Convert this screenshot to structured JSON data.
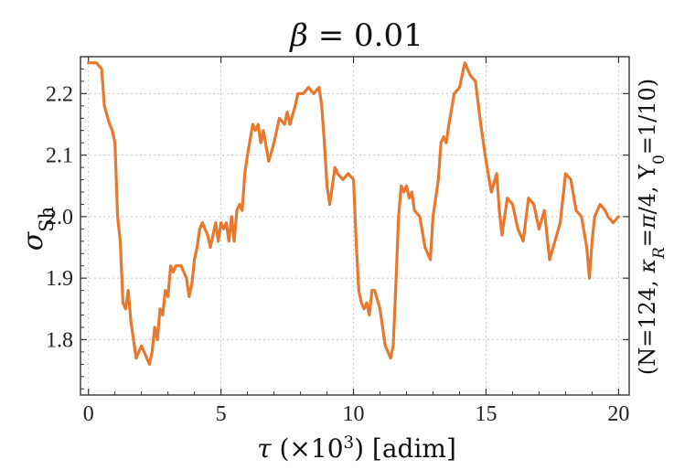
{
  "chart_data": {
    "type": "line",
    "title": "β = 0.01",
    "xlabel": "τ (×10³) [adim]",
    "ylabel": "σSh",
    "right_label": "(N=124, κR=π/4, Y0=1/10)",
    "xlim": [
      -0.3,
      20.4
    ],
    "ylim": [
      1.71,
      2.26
    ],
    "x_ticks": [
      0,
      5,
      10,
      15,
      20
    ],
    "y_ticks": [
      1.8,
      1.9,
      2.0,
      2.1,
      2.2
    ],
    "x_tick_labels": [
      "0",
      "5",
      "10",
      "15",
      "20"
    ],
    "y_tick_labels": [
      "1.8",
      "1.9",
      "2.0",
      "2.1",
      "2.2"
    ],
    "grid": true,
    "line_color": "#e8782e",
    "series": [
      {
        "x": [
          0.0,
          0.3,
          0.5,
          0.6,
          0.8,
          0.9,
          1.0,
          1.1,
          1.2,
          1.3,
          1.4,
          1.5,
          1.6,
          1.7,
          1.8,
          1.9,
          2.0,
          2.1,
          2.2,
          2.3,
          2.4,
          2.5,
          2.6,
          2.7,
          2.8,
          2.9,
          3.0,
          3.1,
          3.2,
          3.3,
          3.4,
          3.5,
          3.6,
          3.7,
          3.8,
          3.9,
          4.0,
          4.1,
          4.2,
          4.3,
          4.5,
          4.6,
          4.7,
          4.8,
          4.9,
          5.0,
          5.1,
          5.2,
          5.3,
          5.4,
          5.5,
          5.6,
          5.7,
          5.8,
          5.9,
          6.0,
          6.2,
          6.3,
          6.4,
          6.5,
          6.6,
          6.8,
          7.0,
          7.2,
          7.4,
          7.5,
          7.6,
          7.8,
          7.9,
          8.1,
          8.3,
          8.5,
          8.7,
          8.8,
          8.9,
          9.0,
          9.1,
          9.2,
          9.3,
          9.4,
          9.6,
          9.8,
          10.0,
          10.1,
          10.2,
          10.3,
          10.4,
          10.5,
          10.6,
          10.7,
          10.8,
          11.0,
          11.2,
          11.3,
          11.4,
          11.5,
          11.6,
          11.7,
          11.8,
          11.9,
          12.0,
          12.1,
          12.2,
          12.3,
          12.5,
          12.7,
          12.9,
          13.0,
          13.1,
          13.2,
          13.3,
          13.4,
          13.5,
          13.6,
          13.8,
          14.0,
          14.2,
          14.4,
          14.6,
          14.8,
          15.0,
          15.2,
          15.4,
          15.5,
          15.6,
          15.7,
          15.8,
          16.0,
          16.2,
          16.4,
          16.6,
          16.8,
          17.0,
          17.2,
          17.4,
          17.6,
          17.8,
          18.0,
          18.2,
          18.4,
          18.6,
          18.8,
          18.9,
          19.0,
          19.1,
          19.3,
          19.5,
          19.6,
          19.8,
          20.0
        ],
        "y": [
          2.25,
          2.25,
          2.24,
          2.18,
          2.15,
          2.14,
          2.12,
          2.0,
          1.96,
          1.86,
          1.85,
          1.88,
          1.83,
          1.8,
          1.77,
          1.78,
          1.79,
          1.78,
          1.77,
          1.76,
          1.78,
          1.82,
          1.8,
          1.85,
          1.84,
          1.88,
          1.87,
          1.92,
          1.91,
          1.92,
          1.92,
          1.92,
          1.91,
          1.9,
          1.87,
          1.89,
          1.93,
          1.95,
          1.98,
          1.99,
          1.97,
          1.95,
          1.97,
          1.99,
          1.96,
          1.99,
          1.98,
          1.99,
          1.96,
          2.0,
          1.96,
          2.01,
          2.02,
          2.01,
          2.07,
          2.1,
          2.15,
          2.14,
          2.15,
          2.12,
          2.14,
          2.09,
          2.12,
          2.16,
          2.15,
          2.17,
          2.15,
          2.18,
          2.2,
          2.2,
          2.21,
          2.2,
          2.21,
          2.18,
          2.12,
          2.05,
          2.02,
          2.05,
          2.08,
          2.07,
          2.06,
          2.07,
          2.06,
          1.96,
          1.88,
          1.86,
          1.85,
          1.86,
          1.84,
          1.88,
          1.88,
          1.85,
          1.79,
          1.78,
          1.77,
          1.79,
          1.89,
          2.0,
          2.05,
          2.04,
          2.05,
          2.03,
          2.04,
          2.01,
          2.0,
          1.95,
          1.93,
          2.0,
          2.03,
          2.06,
          2.12,
          2.13,
          2.12,
          2.15,
          2.2,
          2.21,
          2.25,
          2.23,
          2.22,
          2.15,
          2.09,
          2.04,
          2.07,
          2.01,
          1.97,
          2.0,
          2.03,
          2.02,
          1.98,
          1.96,
          2.03,
          2.02,
          1.98,
          2.01,
          1.93,
          1.96,
          1.99,
          2.07,
          2.06,
          2.01,
          2.0,
          1.95,
          1.9,
          1.96,
          2.0,
          2.02,
          2.01,
          2.0,
          1.99,
          2.0
        ]
      }
    ]
  }
}
